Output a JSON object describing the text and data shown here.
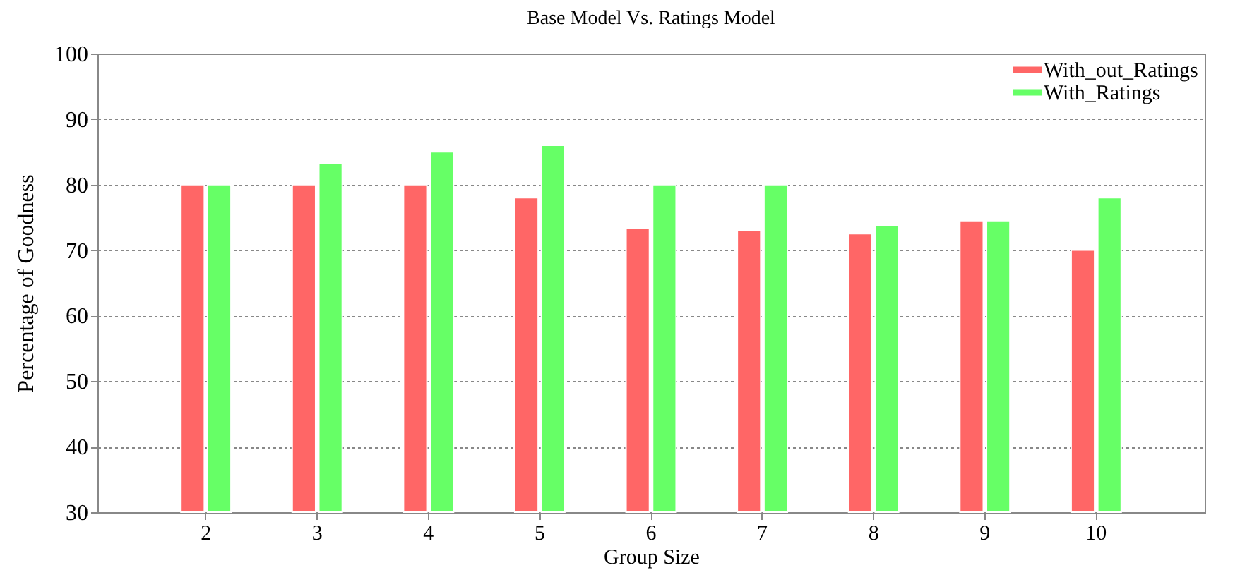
{
  "chart_data": {
    "type": "bar",
    "title": "Base Model Vs. Ratings Model",
    "xlabel": "Group Size",
    "ylabel": "Percentage of Goodness",
    "categories": [
      "2",
      "3",
      "4",
      "5",
      "6",
      "7",
      "8",
      "9",
      "10"
    ],
    "series": [
      {
        "name": "With_out_Ratings",
        "color": "#ff6666",
        "values": [
          80,
          80,
          80,
          78,
          73.3,
          73,
          72.5,
          74.5,
          70
        ]
      },
      {
        "name": "With_Ratings",
        "color": "#66ff66",
        "values": [
          80,
          83.3,
          85,
          86,
          80,
          80,
          73.8,
          74.5,
          78
        ]
      }
    ],
    "ylim": [
      30,
      100
    ],
    "yticks": [
      30,
      40,
      50,
      60,
      70,
      80,
      90,
      100
    ],
    "grid": "y",
    "legend": "top right"
  }
}
